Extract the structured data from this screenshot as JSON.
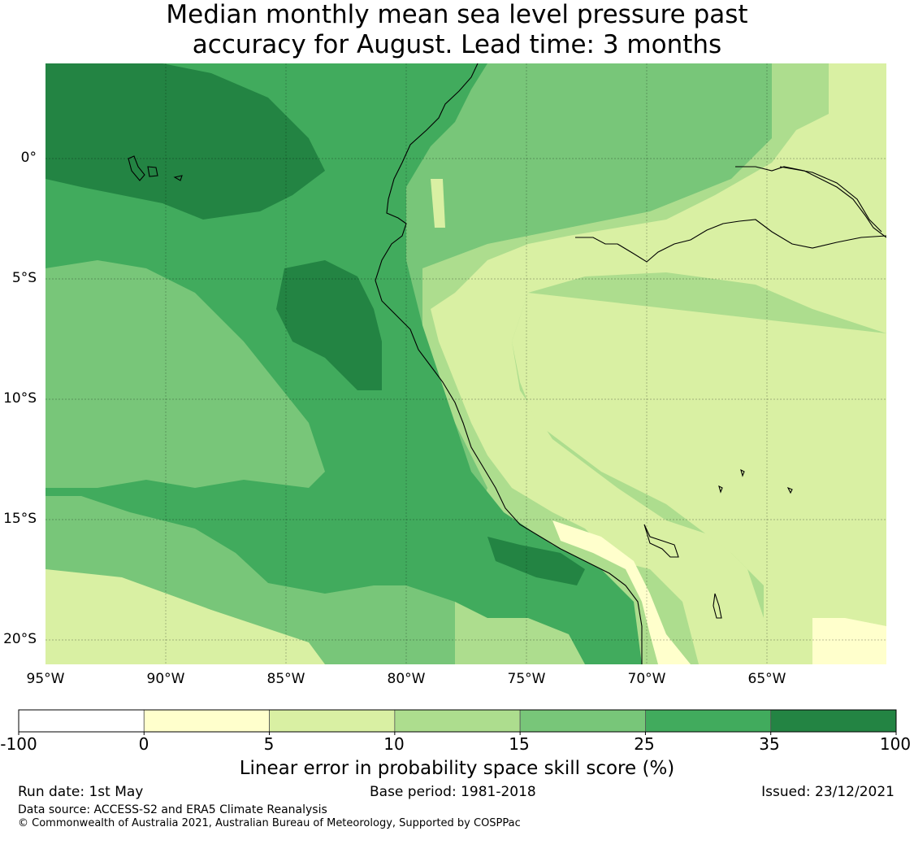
{
  "title": {
    "line1": "Median monthly mean sea level pressure past",
    "line2": "accuracy for August. Lead time: 3 months"
  },
  "map": {
    "lat_labels": [
      "0°",
      "5°S",
      "10°S",
      "15°S",
      "20°S"
    ],
    "lon_labels": [
      "95°W",
      "90°W",
      "85°W",
      "80°W",
      "75°W",
      "70°W",
      "65°W"
    ],
    "palette": {
      "c_0_5": "#ffffcc",
      "c_5_10": "#d9f0a3",
      "c_10_15": "#addd8e",
      "c_15_25": "#78c679",
      "c_25_35": "#41ab5d",
      "c_35_100": "#238443"
    }
  },
  "colorbar": {
    "ticks": [
      "-100",
      "0",
      "5",
      "10",
      "15",
      "25",
      "35",
      "100"
    ],
    "colors": [
      "#ffffff",
      "#ffffcc",
      "#d9f0a3",
      "#addd8e",
      "#78c679",
      "#41ab5d",
      "#238443"
    ],
    "label": "Linear error in probability space skill score (%)"
  },
  "footer": {
    "run_date": "Run date: 1st May",
    "base_period": "Base period: 1981-2018",
    "issued": "Issued: 23/12/2021",
    "data_source": "Data source: ACCESS-S2 and ERA5 Climate Reanalysis",
    "copyright": "© Commonwealth of Australia 2021, Australian Bureau of Meteorology, Supported by COSPPac"
  }
}
